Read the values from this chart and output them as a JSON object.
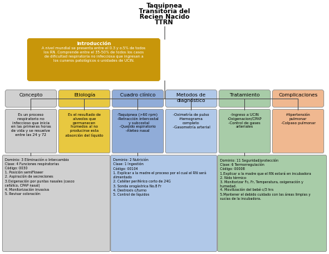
{
  "bg_color": "#ffffff",
  "title_lines": [
    "Taquipnea",
    "Transitoria del",
    "Recien Nacido",
    "TTRN"
  ],
  "intro": {
    "title": "Introducción",
    "text": "A nivel mundial se presenta entre el 0.3 y o.5% de todos\nlos RN. Comprende entre el 35-50% de todos los casos\nde dificultad respiratoria no infecciosa que ingresan a\nlos cuneros patológicos o unidades de UCIN.",
    "bg": "#c8960a",
    "fg": "#ffffff"
  },
  "categories": [
    {
      "label": "Concepto",
      "bg": "#b8b8b8",
      "light": "#d0d0d0"
    },
    {
      "label": "Etiología",
      "bg": "#d4a800",
      "light": "#e8c840"
    },
    {
      "label": "Cuadro clínico",
      "bg": "#6888c8",
      "light": "#90acd8"
    },
    {
      "label": "Metodos de\ndiagnóstico",
      "bg": "#80a8d8",
      "light": "#b0c8e8"
    },
    {
      "label": "Tratamiento",
      "bg": "#78b878",
      "light": "#a8cca8"
    },
    {
      "label": "Complicaciones",
      "bg": "#e89060",
      "light": "#f0b890"
    }
  ],
  "details": [
    "Es un proceso\nrespiratorio no\ninfeccioso que inicia\nen las primeras horas\nde vida y se resuelve\nentre las 24 y 72",
    "Es el resultado de\nalveolos que\npermanecen\nhúmedos al no\nproducirse esta\nabsorción del líquido",
    "-Taquipnea (>60 rpm)\n-Retracción intercostal\n  y subcostal\n-Quejido espiratorio\n-Aleteo nasal",
    "-Oximetría de pulso\n-Hemograma\ncompleto\n-Gasometría arterial",
    "-Ingreso a UCIN\n-Oxigenacion/CPAP\n-Control de gases\narteriales",
    "-Hipertensión\npulmonar\n-Colpaso pulmonar"
  ],
  "bottom_boxes": [
    {
      "bg": "#d0d0d0",
      "text": "Dominio: 3 Eliminación o Intercambio\nClase: 4 Funciones respiratorias\nCódigo: 0030\n1. Posición semiFlower\n2. Aspiración de secreciones\n3.Oxigenación por puntas nasales (casco\ncefálico, CPAP nasal)\n4. Monitorización invasiva\n5. Revisar coloración"
    },
    {
      "bg": "#b0c8e8",
      "text": "Dominio: 2 Nutrición\nClase: 1 Ingestión\nCódigo: 00104\n1. Explicar a la madre el proceso por el cual el RN será\nalimentado\n2. Catéter periférico corto de 24G\n3. Sonda orogástrica No.8 Fr\n4. Destroxis c/turno\n5. Control de líquidos"
    },
    {
      "bg": "#a8cca8",
      "text": "Dominio: 11 Seguridad/protección\nClase: 6 Termorregulación\nCódigo: 00008\n1.Explicar a la madre que el RN estará en incubadora\n2. Nido térmico\n3. Monitorizar Fc, Fr, Temperatura, oxigenación y\nhumedad.\n4. Movilización del bebé c/3 hrs\n5.Mantener el debido cuidado con las áreas limpias y\nsucías de la incubadora."
    }
  ]
}
